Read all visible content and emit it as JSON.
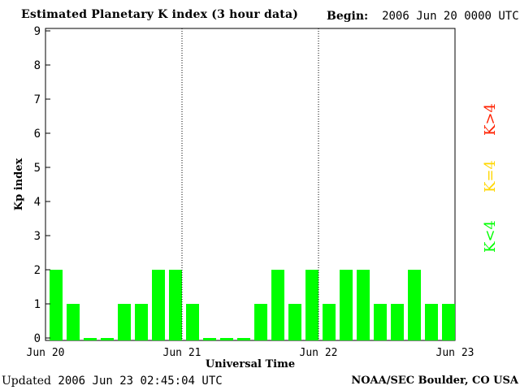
{
  "header": {
    "title": "Estimated Planetary K index (3 hour data)",
    "begin_label": "Begin:",
    "begin_value": "2006 Jun 20 0000 UTC"
  },
  "footer": {
    "updated_label": "Updated",
    "updated_value": "2006 Jun 23 02:45:04 UTC",
    "source": "NOAA/SEC Boulder, CO USA"
  },
  "legend": [
    {
      "label": "K<4",
      "color": "#00ff00"
    },
    {
      "label": "K=4",
      "color": "#ffd700"
    },
    {
      "label": "K>4",
      "color": "#ff2000"
    }
  ],
  "chart_data": {
    "type": "bar",
    "title": "Estimated Planetary K index (3 hour data)",
    "xlabel": "Universal Time",
    "ylabel": "Kp index",
    "ylim": [
      0,
      9
    ],
    "yticks": [
      0,
      1,
      2,
      3,
      4,
      5,
      6,
      7,
      8,
      9
    ],
    "xtick_labels": [
      "Jun 20",
      "Jun 21",
      "Jun 22",
      "Jun 23"
    ],
    "bar_color": "#00ff00",
    "values": [
      2,
      1,
      0,
      0,
      1,
      1,
      2,
      2,
      1,
      0,
      0,
      0,
      1,
      2,
      1,
      2,
      1,
      2,
      2,
      1,
      1,
      2,
      1,
      1
    ]
  }
}
